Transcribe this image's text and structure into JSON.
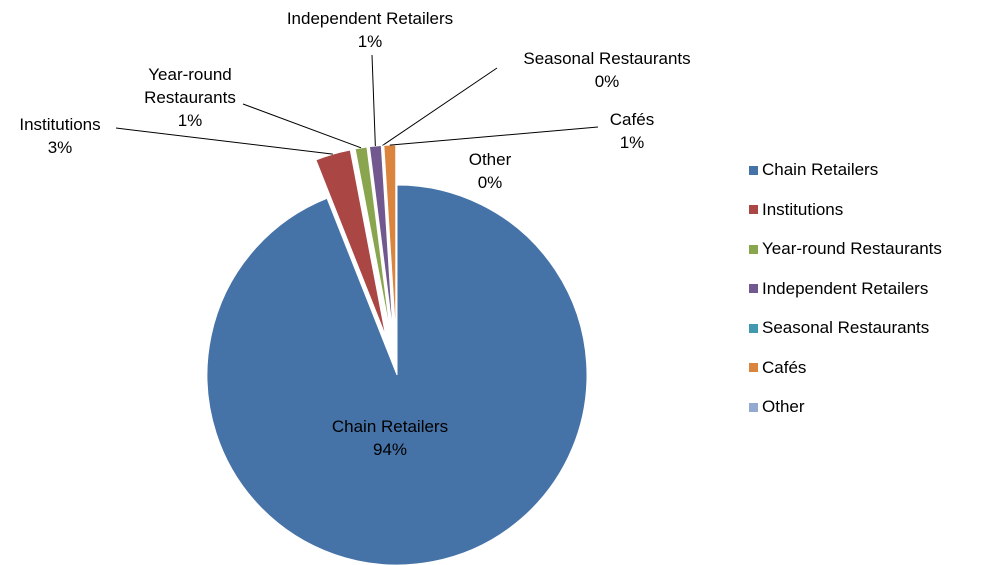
{
  "chart_data": {
    "type": "pie",
    "categories": [
      "Chain Retailers",
      "Institutions",
      "Year-round Restaurants",
      "Independent Retailers",
      "Seasonal Restaurants",
      "Cafés",
      "Other"
    ],
    "values": [
      94,
      3,
      1,
      1,
      0,
      1,
      0
    ],
    "value_labels": [
      "94%",
      "3%",
      "1%",
      "1%",
      "0%",
      "1%",
      "0%"
    ],
    "colors": [
      "#4572a7",
      "#aa4643",
      "#89a54e",
      "#71588f",
      "#4198af",
      "#db843d",
      "#93a9cf"
    ],
    "legend": "right"
  }
}
